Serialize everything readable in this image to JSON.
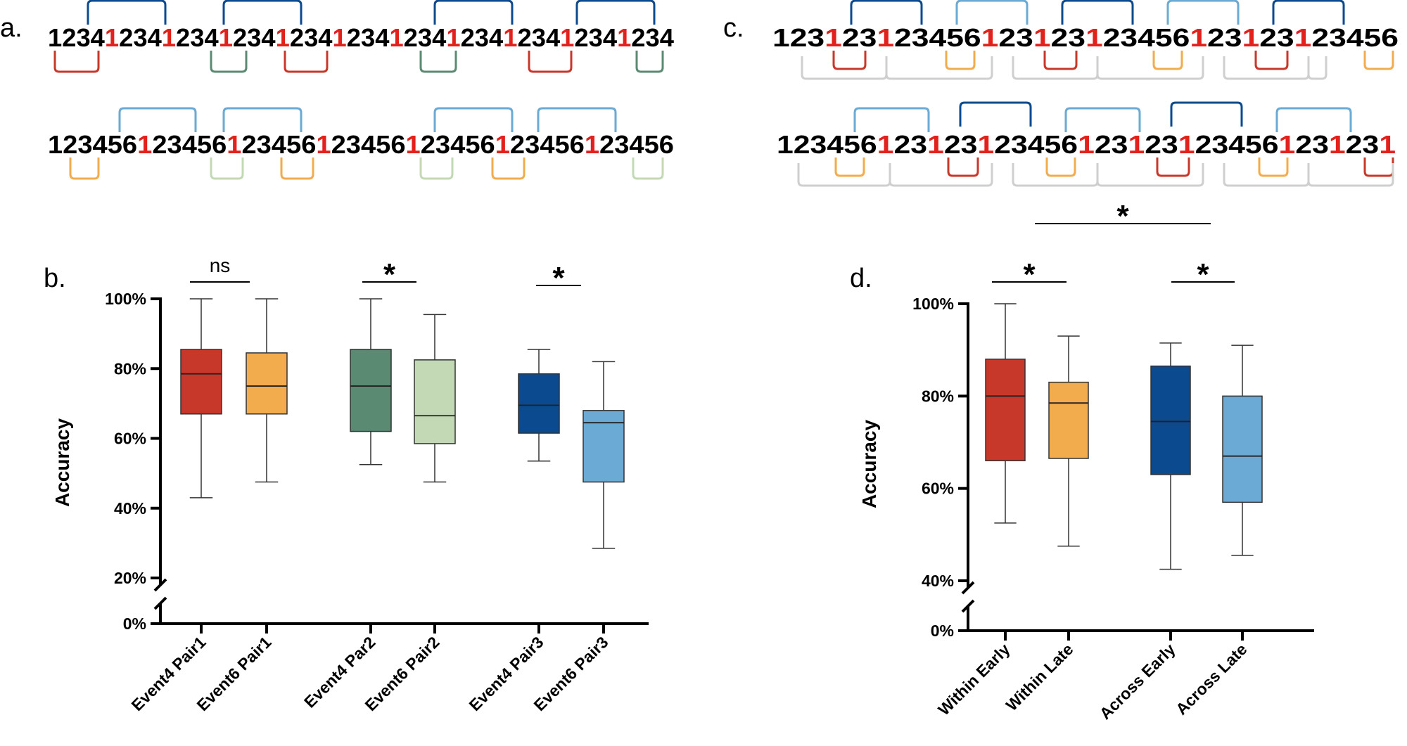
{
  "panels": {
    "a": {
      "label": "a.",
      "sequences": [
        "12341234123412341234123412341234123412341234",
        "123456123456123456123456123456123456123456"
      ],
      "sequence_rows": [
        {
          "text": "12341234123412341234123412341234123412341234",
          "highlight_char": "1"
        },
        {
          "text": "123456123456123456123456123456123456123456",
          "highlight_char": "1"
        }
      ]
    },
    "c": {
      "label": "c.",
      "sequence_rows": [
        {
          "text": "123123123456123123123456123123123456",
          "highlight_char": "1"
        },
        {
          "text": "1234561231231234561231231234561231231",
          "highlight_char": "1"
        }
      ]
    },
    "b": {
      "label": "b."
    },
    "d": {
      "label": "d."
    }
  },
  "colors": {
    "red": "#c8382a",
    "orange": "#f2ac4e",
    "dark_green": "#5b8a73",
    "light_green": "#c3d9b5",
    "dark_blue": "#0b4a8f",
    "light_blue": "#6aaad4",
    "gray": "#cfcfcf",
    "highlight": "#e3211c"
  },
  "chart_data": [
    {
      "type": "box",
      "panel": "b",
      "ylabel": "Accuracy",
      "yticks": [
        "0%",
        "20%",
        "40%",
        "60%",
        "80%",
        "100%"
      ],
      "axis_break": "between 0% and 20%",
      "ylim": [
        20,
        100
      ],
      "categories": [
        "Event4 Pair1",
        "Event6 Pair1",
        "Event4 Par2",
        "Event6 Pair2",
        "Event4 Pair3",
        "Event6 Pair3"
      ],
      "series": [
        {
          "category": "Event4 Pair1",
          "color": "#c8382a",
          "min": 43,
          "q1": 67,
          "median": 78.5,
          "q3": 85.5,
          "max": 100
        },
        {
          "category": "Event6 Pair1",
          "color": "#f2ac4e",
          "min": 47.5,
          "q1": 67,
          "median": 75,
          "q3": 84.5,
          "max": 100
        },
        {
          "category": "Event4 Par2",
          "color": "#5b8a73",
          "min": 52.5,
          "q1": 62,
          "median": 75,
          "q3": 85.5,
          "max": 100
        },
        {
          "category": "Event6 Pair2",
          "color": "#c3d9b5",
          "min": 47.5,
          "q1": 58.5,
          "median": 66.5,
          "q3": 82.5,
          "max": 95.5
        },
        {
          "category": "Event4 Pair3",
          "color": "#0b4a8f",
          "min": 53.5,
          "q1": 61.5,
          "median": 69.5,
          "q3": 78.5,
          "max": 85.5
        },
        {
          "category": "Event6 Pair3",
          "color": "#6aaad4",
          "min": 28.5,
          "q1": 47.5,
          "median": 64.5,
          "q3": 68,
          "max": 82
        }
      ],
      "comparisons": [
        {
          "pair": [
            "Event4 Pair1",
            "Event6 Pair1"
          ],
          "label": "ns"
        },
        {
          "pair": [
            "Event4 Par2",
            "Event6 Pair2"
          ],
          "label": "*"
        },
        {
          "pair": [
            "Event4 Pair3",
            "Event6 Pair3"
          ],
          "label": "*"
        }
      ]
    },
    {
      "type": "box",
      "panel": "d",
      "ylabel": "Accuracy",
      "yticks": [
        "0%",
        "40%",
        "60%",
        "80%",
        "100%"
      ],
      "axis_break": "between 0% and 40%",
      "ylim": [
        40,
        100
      ],
      "categories": [
        "Within Early",
        "Within Late",
        "Across Early",
        "Across Late"
      ],
      "series": [
        {
          "category": "Within Early",
          "color": "#c8382a",
          "min": 52.5,
          "q1": 66,
          "median": 80,
          "q3": 88,
          "max": 100
        },
        {
          "category": "Within Late",
          "color": "#f2ac4e",
          "min": 47.5,
          "q1": 66.5,
          "median": 78.5,
          "q3": 83,
          "max": 93
        },
        {
          "category": "Across Early",
          "color": "#0b4a8f",
          "min": 42.5,
          "q1": 63,
          "median": 74.5,
          "q3": 86.5,
          "max": 91.5
        },
        {
          "category": "Across Late",
          "color": "#6aaad4",
          "min": 45.5,
          "q1": 57,
          "median": 67,
          "q3": 80,
          "max": 91
        }
      ],
      "comparisons": [
        {
          "pair": [
            "Within Early",
            "Within Late"
          ],
          "label": "*"
        },
        {
          "pair": [
            "Across Early",
            "Across Late"
          ],
          "label": "*"
        },
        {
          "pair": [
            "Within Early",
            "Across Late"
          ],
          "label": "*"
        }
      ]
    }
  ]
}
